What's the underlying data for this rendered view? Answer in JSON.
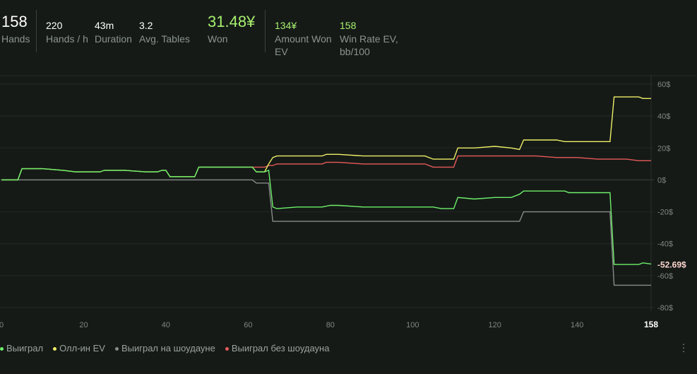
{
  "stats": {
    "hands": {
      "value": "158",
      "label": "Hands"
    },
    "hands_per_h": {
      "value": "220",
      "label": "Hands / h"
    },
    "duration": {
      "value": "43m",
      "label": "Duration"
    },
    "avg_tables": {
      "value": "3.2",
      "label": "Avg. Tables"
    },
    "won": {
      "value": "31.48¥",
      "label": "Won"
    },
    "amount_won_ev": {
      "value": "134¥",
      "label1": "Amount Won",
      "label2": "EV"
    },
    "win_rate_ev": {
      "value": "158",
      "label1": "Win Rate EV,",
      "label2": "bb/100"
    }
  },
  "legend": [
    {
      "label": "Выиграл",
      "color": "#6ef06a"
    },
    {
      "label": "Олл-ин EV",
      "color": "#eeee66"
    },
    {
      "label": "Выиграл на шоудауне",
      "color": "#8a8a8a"
    },
    {
      "label": "Выиграл без шоудауна",
      "color": "#e85a5a"
    }
  ],
  "current_value_label": "-52.69$",
  "menu_icon": "kebab-menu-icon",
  "chart_data": {
    "type": "line",
    "xlim": [
      0,
      158
    ],
    "ylim": [
      -80,
      60
    ],
    "x_ticks": [
      "0",
      "20",
      "40",
      "60",
      "80",
      "100",
      "120",
      "140",
      "158"
    ],
    "y_ticks": [
      "60$",
      "40$",
      "20$",
      "0$",
      "-20$",
      "-40$",
      "-60$",
      "-80$"
    ],
    "y_tick_values": [
      60,
      40,
      20,
      0,
      -20,
      -40,
      -60,
      -80
    ],
    "x_tick_values": [
      0,
      20,
      40,
      60,
      80,
      100,
      120,
      140,
      158
    ],
    "series": [
      {
        "name": "Выиграл",
        "color": "#6ef06a",
        "points": [
          [
            0,
            0
          ],
          [
            4,
            0
          ],
          [
            5,
            7
          ],
          [
            10,
            7
          ],
          [
            15,
            6
          ],
          [
            18,
            5
          ],
          [
            24,
            5
          ],
          [
            25,
            6
          ],
          [
            30,
            6
          ],
          [
            35,
            5
          ],
          [
            38,
            5
          ],
          [
            39,
            6
          ],
          [
            40,
            6
          ],
          [
            41,
            2
          ],
          [
            47,
            2
          ],
          [
            48,
            8
          ],
          [
            55,
            8
          ],
          [
            61,
            8
          ],
          [
            62,
            5
          ],
          [
            64,
            5
          ],
          [
            65,
            6
          ],
          [
            66,
            -17
          ],
          [
            67,
            -18
          ],
          [
            72,
            -17
          ],
          [
            78,
            -17
          ],
          [
            80,
            -16
          ],
          [
            82,
            -16
          ],
          [
            88,
            -17
          ],
          [
            95,
            -17
          ],
          [
            99,
            -17
          ],
          [
            103,
            -17
          ],
          [
            105,
            -17
          ],
          [
            107,
            -18
          ],
          [
            110,
            -18
          ],
          [
            111,
            -11
          ],
          [
            115,
            -12
          ],
          [
            120,
            -11
          ],
          [
            124,
            -11
          ],
          [
            126,
            -9
          ],
          [
            127,
            -7
          ],
          [
            130,
            -7
          ],
          [
            135,
            -7
          ],
          [
            137,
            -7
          ],
          [
            138,
            -8
          ],
          [
            140,
            -8
          ],
          [
            145,
            -8
          ],
          [
            148,
            -8
          ],
          [
            149,
            -53
          ],
          [
            152,
            -53
          ],
          [
            155,
            -53
          ],
          [
            156,
            -52
          ],
          [
            158,
            -52.69
          ]
        ]
      },
      {
        "name": "Олл-ин EV",
        "color": "#eeee66",
        "points": [
          [
            0,
            0
          ],
          [
            4,
            0
          ],
          [
            5,
            7
          ],
          [
            10,
            7
          ],
          [
            15,
            6
          ],
          [
            18,
            5
          ],
          [
            24,
            5
          ],
          [
            25,
            6
          ],
          [
            30,
            6
          ],
          [
            35,
            5
          ],
          [
            38,
            5
          ],
          [
            39,
            6
          ],
          [
            40,
            6
          ],
          [
            41,
            2
          ],
          [
            47,
            2
          ],
          [
            48,
            8
          ],
          [
            55,
            8
          ],
          [
            61,
            8
          ],
          [
            62,
            5
          ],
          [
            64,
            5
          ],
          [
            65,
            10
          ],
          [
            66,
            14
          ],
          [
            67,
            15
          ],
          [
            72,
            15
          ],
          [
            78,
            15
          ],
          [
            79,
            16
          ],
          [
            80,
            16
          ],
          [
            82,
            16
          ],
          [
            88,
            15
          ],
          [
            95,
            15
          ],
          [
            99,
            15
          ],
          [
            103,
            15
          ],
          [
            105,
            13
          ],
          [
            109,
            13
          ],
          [
            110,
            13
          ],
          [
            111,
            20
          ],
          [
            115,
            20
          ],
          [
            120,
            21
          ],
          [
            124,
            20
          ],
          [
            126,
            19
          ],
          [
            127,
            25
          ],
          [
            130,
            25
          ],
          [
            135,
            25
          ],
          [
            137,
            24
          ],
          [
            140,
            24
          ],
          [
            145,
            24
          ],
          [
            148,
            24
          ],
          [
            149,
            52
          ],
          [
            152,
            52
          ],
          [
            155,
            52
          ],
          [
            156,
            51
          ],
          [
            158,
            51
          ]
        ]
      },
      {
        "name": "Выиграл на шоудауне",
        "color": "#8a8a8a",
        "points": [
          [
            0,
            0
          ],
          [
            61,
            0
          ],
          [
            62,
            -2
          ],
          [
            64,
            -2
          ],
          [
            65,
            -2
          ],
          [
            66,
            -26
          ],
          [
            72,
            -26
          ],
          [
            80,
            -26
          ],
          [
            90,
            -26
          ],
          [
            100,
            -26
          ],
          [
            110,
            -26
          ],
          [
            120,
            -26
          ],
          [
            126,
            -26
          ],
          [
            127,
            -20
          ],
          [
            130,
            -20
          ],
          [
            140,
            -20
          ],
          [
            148,
            -20
          ],
          [
            149,
            -66
          ],
          [
            152,
            -66
          ],
          [
            158,
            -66
          ]
        ]
      },
      {
        "name": "Выиграл без шоудауна",
        "color": "#e85a5a",
        "points": [
          [
            61,
            8
          ],
          [
            62,
            8
          ],
          [
            64,
            8
          ],
          [
            65,
            9
          ],
          [
            66,
            9
          ],
          [
            67,
            10
          ],
          [
            72,
            10
          ],
          [
            78,
            10
          ],
          [
            79,
            11
          ],
          [
            80,
            11
          ],
          [
            82,
            11
          ],
          [
            88,
            10
          ],
          [
            95,
            10
          ],
          [
            99,
            10
          ],
          [
            103,
            10
          ],
          [
            105,
            8
          ],
          [
            109,
            8
          ],
          [
            110,
            8
          ],
          [
            111,
            15
          ],
          [
            115,
            15
          ],
          [
            120,
            15
          ],
          [
            124,
            15
          ],
          [
            126,
            15
          ],
          [
            127,
            15
          ],
          [
            130,
            15
          ],
          [
            135,
            14
          ],
          [
            137,
            14
          ],
          [
            140,
            14
          ],
          [
            145,
            13
          ],
          [
            148,
            13
          ],
          [
            149,
            13
          ],
          [
            152,
            13
          ],
          [
            155,
            12
          ],
          [
            156,
            12
          ],
          [
            158,
            12
          ]
        ]
      }
    ]
  }
}
